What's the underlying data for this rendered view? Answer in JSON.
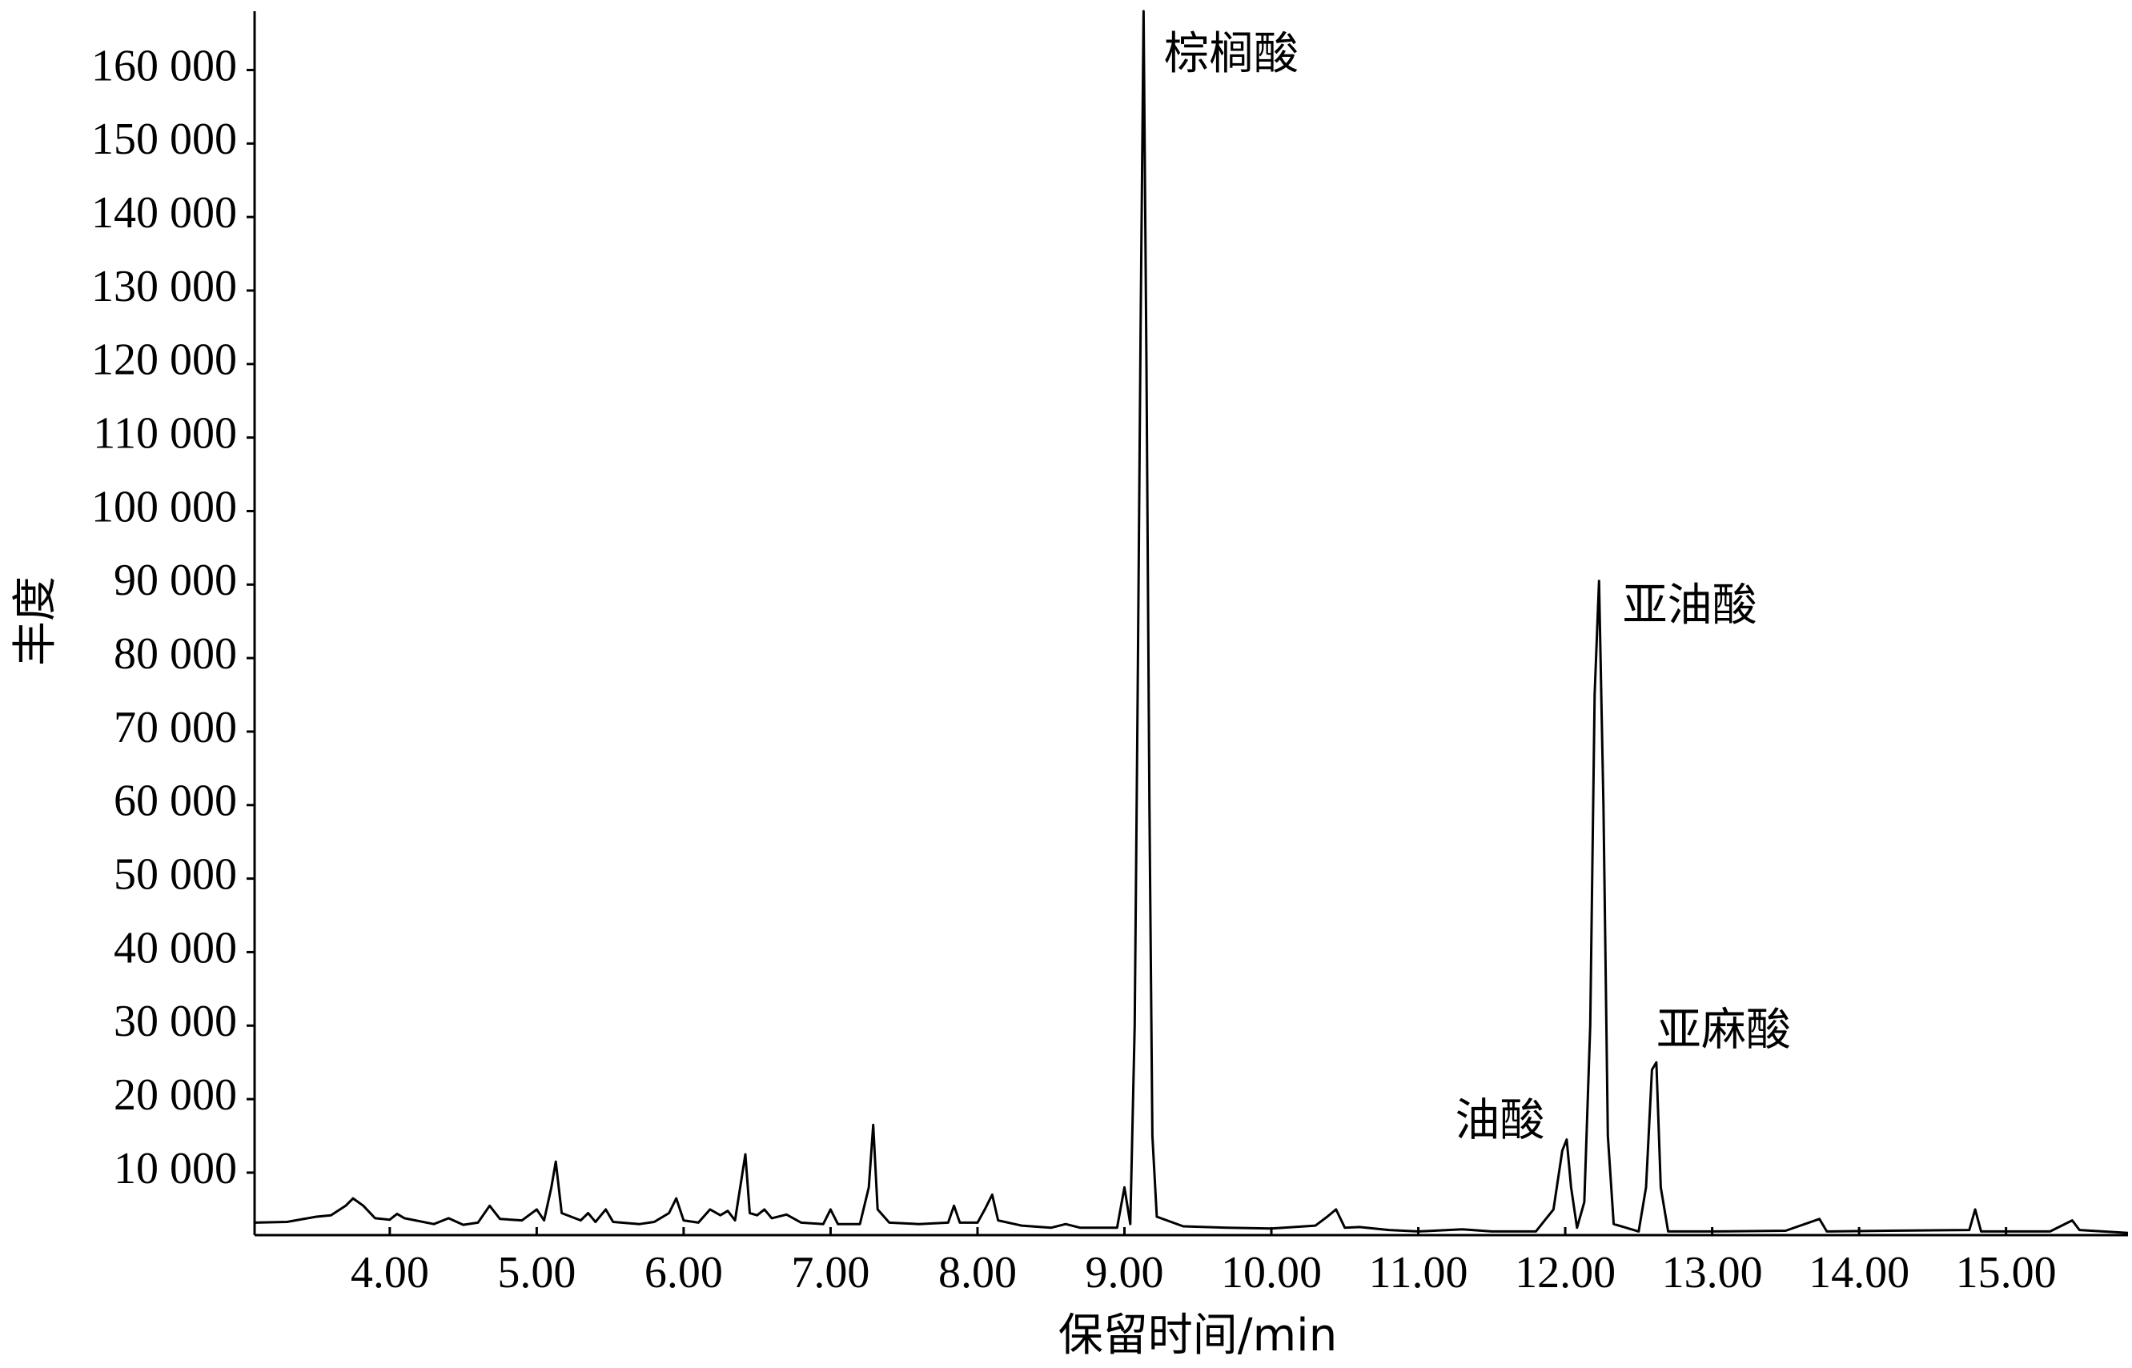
{
  "chart_data": {
    "type": "line",
    "xlabel": "保留时间/min",
    "ylabel": "丰度",
    "color": "#000000",
    "xlim": [
      3.08,
      15.83
    ],
    "ylim": [
      1500,
      168000
    ],
    "xticks": [
      {
        "value": 4,
        "label": "4.00"
      },
      {
        "value": 5,
        "label": "5.00"
      },
      {
        "value": 6,
        "label": "6.00"
      },
      {
        "value": 7,
        "label": "7.00"
      },
      {
        "value": 8,
        "label": "8.00"
      },
      {
        "value": 9,
        "label": "9.00"
      },
      {
        "value": 10,
        "label": "10.00"
      },
      {
        "value": 11,
        "label": "11.00"
      },
      {
        "value": 12,
        "label": "12.00"
      },
      {
        "value": 13,
        "label": "13.00"
      },
      {
        "value": 14,
        "label": "14.00"
      },
      {
        "value": 15,
        "label": "15.00"
      }
    ],
    "yticks": [
      {
        "value": 10000,
        "label": "10 000"
      },
      {
        "value": 20000,
        "label": "20 000"
      },
      {
        "value": 30000,
        "label": "30 000"
      },
      {
        "value": 40000,
        "label": "40 000"
      },
      {
        "value": 50000,
        "label": "50 000"
      },
      {
        "value": 60000,
        "label": "60 000"
      },
      {
        "value": 70000,
        "label": "70 000"
      },
      {
        "value": 80000,
        "label": "80 000"
      },
      {
        "value": 90000,
        "label": "90 000"
      },
      {
        "value": 100000,
        "label": "100 000"
      },
      {
        "value": 110000,
        "label": "110 000"
      },
      {
        "value": 120000,
        "label": "120 000"
      },
      {
        "value": 130000,
        "label": "130 000"
      },
      {
        "value": 140000,
        "label": "140 000"
      },
      {
        "value": 150000,
        "label": "150 000"
      },
      {
        "value": 160000,
        "label": "160 000"
      }
    ],
    "annotations": [
      {
        "text": "棕榈酸",
        "x": 9.27,
        "y": 161800,
        "anchor": "start"
      },
      {
        "text": "亚油酸",
        "x": 12.39,
        "y": 86800,
        "anchor": "start"
      },
      {
        "text": "油酸",
        "x": 11.86,
        "y": 16700,
        "anchor": "end"
      },
      {
        "text": "亚麻酸",
        "x": 12.62,
        "y": 29000,
        "anchor": "start"
      }
    ],
    "x": [
      3.08,
      3.3,
      3.5,
      3.6,
      3.7,
      3.75,
      3.82,
      3.9,
      4.0,
      4.05,
      4.1,
      4.3,
      4.4,
      4.5,
      4.6,
      4.68,
      4.75,
      4.9,
      5.0,
      5.05,
      5.1,
      5.13,
      5.17,
      5.3,
      5.35,
      5.4,
      5.47,
      5.52,
      5.7,
      5.8,
      5.9,
      5.95,
      6.0,
      6.1,
      6.18,
      6.25,
      6.3,
      6.35,
      6.42,
      6.45,
      6.5,
      6.55,
      6.6,
      6.7,
      6.8,
      6.95,
      7.0,
      7.05,
      7.2,
      7.26,
      7.29,
      7.32,
      7.4,
      7.6,
      7.8,
      7.84,
      7.88,
      8.0,
      8.05,
      8.1,
      8.14,
      8.3,
      8.5,
      8.6,
      8.7,
      8.95,
      9.0,
      9.04,
      9.07,
      9.09,
      9.11,
      9.13,
      9.15,
      9.17,
      9.19,
      9.22,
      9.4,
      9.7,
      10.0,
      10.3,
      10.38,
      10.44,
      10.5,
      10.6,
      10.8,
      11.0,
      11.3,
      11.5,
      11.8,
      11.92,
      11.98,
      12.01,
      12.04,
      12.08,
      12.13,
      12.17,
      12.2,
      12.23,
      12.26,
      12.29,
      12.33,
      12.5,
      12.55,
      12.59,
      12.62,
      12.65,
      12.7,
      13.0,
      13.5,
      13.73,
      13.78,
      14.2,
      14.75,
      14.79,
      14.83,
      15.3,
      15.45,
      15.5,
      15.83
    ],
    "values": [
      3200,
      3300,
      4000,
      4200,
      5500,
      6500,
      5500,
      3800,
      3600,
      4400,
      3800,
      3000,
      3800,
      2900,
      3200,
      5500,
      3700,
      3500,
      5000,
      3500,
      8000,
      11500,
      4500,
      3500,
      4500,
      3300,
      5000,
      3300,
      3000,
      3300,
      4500,
      6500,
      3500,
      3200,
      5000,
      4200,
      4800,
      3500,
      12500,
      4500,
      4200,
      5000,
      3800,
      4300,
      3200,
      3000,
      5000,
      3000,
      3000,
      8000,
      16500,
      5000,
      3200,
      3000,
      3200,
      5500,
      3200,
      3200,
      5000,
      7000,
      3500,
      2800,
      2500,
      3000,
      2500,
      2500,
      8000,
      3000,
      30000,
      75000,
      125000,
      168000,
      120000,
      60000,
      15000,
      4000,
      2700,
      2500,
      2400,
      2800,
      4000,
      5000,
      2500,
      2600,
      2200,
      2000,
      2300,
      2000,
      2000,
      5000,
      13000,
      14500,
      8000,
      2500,
      6000,
      30000,
      75000,
      90500,
      60000,
      15000,
      3000,
      2000,
      8000,
      24000,
      25000,
      8000,
      2000,
      2000,
      2100,
      3700,
      2000,
      2100,
      2200,
      5000,
      2000,
      2000,
      3500,
      2200,
      1800
    ]
  }
}
